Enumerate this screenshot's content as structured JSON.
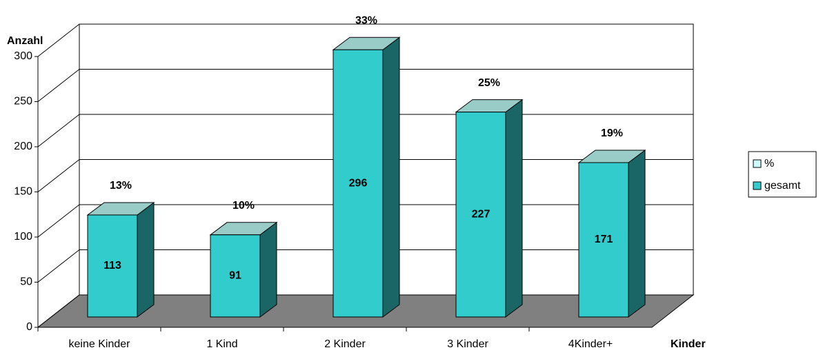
{
  "chart_data": {
    "type": "bar3d",
    "categories": [
      "keine Kinder",
      "1 Kind",
      "2 Kinder",
      "3 Kinder",
      "4Kinder+"
    ],
    "series": [
      {
        "name": "%",
        "color": "#ccffff",
        "values": [
          13,
          10,
          33,
          25,
          19
        ],
        "value_labels": [
          "13%",
          "10%",
          "33%",
          "25%",
          "19%"
        ]
      },
      {
        "name": "gesamt",
        "color": "#33cccc",
        "values": [
          113,
          91,
          296,
          227,
          171
        ]
      }
    ],
    "ylabel": "Anzahl",
    "xlabel": "Kinder",
    "ylim": [
      0,
      300
    ],
    "yticks": [
      0,
      50,
      100,
      150,
      200,
      250,
      300
    ],
    "grid": true,
    "legend": "right"
  }
}
